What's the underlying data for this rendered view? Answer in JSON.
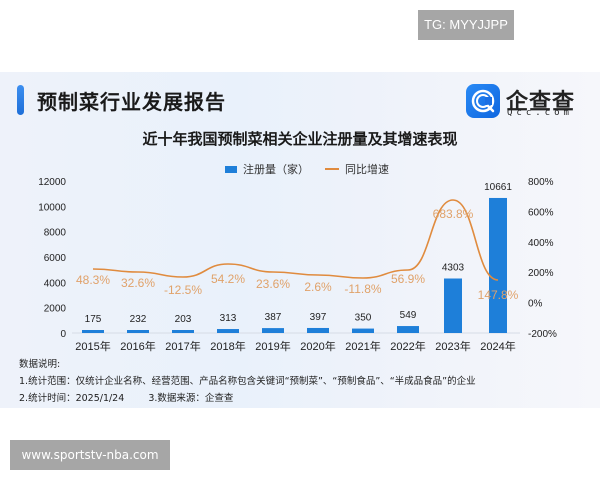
{
  "watermarks": {
    "top_right": "TG: MYYJJPP",
    "bottom_left": "www.sportstv-nba.com"
  },
  "header": {
    "report_title": "预制菜行业发展报告",
    "logo_name": "企查查",
    "logo_domain": "Qcc.com",
    "logo_icon": "qcc-logo-icon"
  },
  "notes": {
    "heading": "数据说明:",
    "line1": "1.统计范围：仅统计企业名称、经营范围、产品名称包含关键词“预制菜”、“预制食品”、“半成品食品”的企业",
    "line2_a": "2.统计时间：2025/1/24",
    "line2_b": "3.数据来源：企查查"
  },
  "colors": {
    "bar": "#1e7fd9",
    "line": "#e08b3e",
    "line_label": "#e0a26a",
    "accent": "#2a8af5"
  },
  "chart_data": {
    "type": "bar+line",
    "title": "近十年我国预制菜相关企业注册量及其增速表现",
    "categories": [
      "2015年",
      "2016年",
      "2017年",
      "2018年",
      "2019年",
      "2020年",
      "2021年",
      "2022年",
      "2023年",
      "2024年"
    ],
    "series": [
      {
        "name": "注册量（家）",
        "type": "bar",
        "axis": "left",
        "values": [
          175,
          232,
          203,
          313,
          387,
          397,
          350,
          549,
          4303,
          10661
        ]
      },
      {
        "name": "同比增速",
        "type": "line",
        "axis": "right",
        "values": [
          48.3,
          32.6,
          -12.5,
          54.2,
          23.6,
          2.6,
          -11.8,
          56.9,
          683.8,
          147.8
        ],
        "labels": [
          "48.3%",
          "32.6%",
          "-12.5%",
          "54.2%",
          "23.6%",
          "2.6%",
          "-11.8%",
          "56.9%",
          "683.8%",
          "147.8%"
        ]
      }
    ],
    "left_axis": {
      "ticks": [
        "0",
        "2000",
        "4000",
        "6000",
        "8000",
        "10000",
        "12000"
      ],
      "ylim": [
        0,
        12000
      ]
    },
    "right_axis": {
      "ticks": [
        "-200%",
        "0%",
        "200%",
        "400%",
        "600%",
        "800%"
      ],
      "ylim": [
        -200,
        800
      ]
    },
    "legend": {
      "bar_label": "注册量（家）",
      "line_label": "同比增速",
      "position": "top"
    },
    "grid": false
  }
}
